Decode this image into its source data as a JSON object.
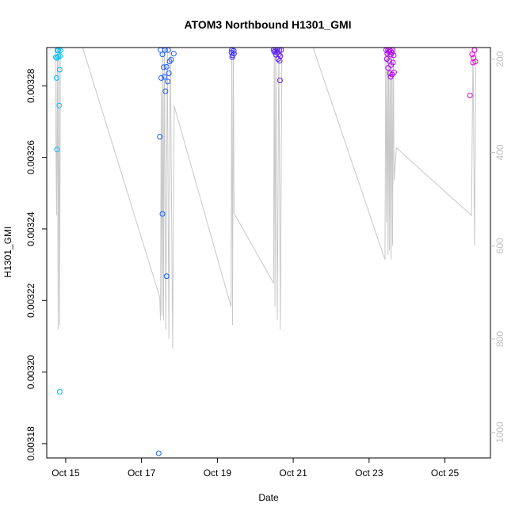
{
  "chart_data": {
    "type": "scatter",
    "title": "ATOM3 Northbound H1301_GMI",
    "xlabel": "Date",
    "ylabel": "H1301_GMI",
    "x_tick_labels": [
      "Oct 15",
      "Oct 17",
      "Oct 19",
      "Oct 21",
      "Oct 23",
      "Oct 25"
    ],
    "x_tick_days": [
      15,
      17,
      19,
      21,
      23,
      25
    ],
    "xlim": [
      14.5,
      26.2
    ],
    "y_tick_labels": [
      "0.00318",
      "0.00320",
      "0.00322",
      "0.00324",
      "0.00326",
      "0.00328"
    ],
    "y_tick_values": [
      0.00318,
      0.0032,
      0.00322,
      0.00324,
      0.00326,
      0.00328
    ],
    "ylim": [
      0.003176,
      0.0032907
    ],
    "y2_label": "",
    "y2_tick_labels": [
      "200",
      "400",
      "600",
      "800",
      "1000"
    ],
    "y2_tick_values": [
      200,
      400,
      600,
      800,
      1000
    ],
    "y2lim": [
      1055,
      175
    ],
    "colors": {
      "points_start": "#00bfff",
      "points_mid": "#1f3fff",
      "points_mid2": "#8a00ff",
      "points_end": "#e600c8",
      "altitude_line": "#c8c8c8",
      "axis": "#000000",
      "right_axis": "#c0c0c0"
    },
    "series": [
      {
        "name": "H1301_GMI",
        "points": [
          [
            14.78,
            0.0032899
          ],
          [
            14.8,
            0.0032899
          ],
          [
            14.86,
            0.0032899
          ],
          [
            14.74,
            0.003288
          ],
          [
            14.77,
            0.0032878
          ],
          [
            14.81,
            0.0032882
          ],
          [
            14.85,
            0.0032883
          ],
          [
            14.84,
            0.0032845
          ],
          [
            14.76,
            0.0032822
          ],
          [
            14.83,
            0.0032745
          ],
          [
            14.77,
            0.0032622
          ],
          [
            14.84,
            0.0031945
          ],
          [
            17.5,
            0.00329
          ],
          [
            17.62,
            0.00329
          ],
          [
            17.7,
            0.00329
          ],
          [
            17.55,
            0.0032888
          ],
          [
            17.85,
            0.003289
          ],
          [
            17.78,
            0.0032873
          ],
          [
            17.74,
            0.0032868
          ],
          [
            17.58,
            0.0032852
          ],
          [
            17.66,
            0.0032853
          ],
          [
            17.72,
            0.0032835
          ],
          [
            17.52,
            0.0032822
          ],
          [
            17.6,
            0.0032825
          ],
          [
            17.69,
            0.0032812
          ],
          [
            17.63,
            0.0032785
          ],
          [
            17.48,
            0.0032658
          ],
          [
            17.55,
            0.0032442
          ],
          [
            17.66,
            0.0032268
          ],
          [
            17.45,
            0.0031773
          ],
          [
            19.38,
            0.00329
          ],
          [
            19.43,
            0.0032898
          ],
          [
            19.37,
            0.0032893
          ],
          [
            19.44,
            0.003289
          ],
          [
            19.4,
            0.0032885
          ],
          [
            19.39,
            0.003288
          ],
          [
            20.48,
            0.00329
          ],
          [
            20.53,
            0.00329
          ],
          [
            20.58,
            0.00329
          ],
          [
            20.63,
            0.00329
          ],
          [
            20.68,
            0.00329
          ],
          [
            20.5,
            0.0032895
          ],
          [
            20.57,
            0.0032893
          ],
          [
            20.62,
            0.0032888
          ],
          [
            20.54,
            0.0032887
          ],
          [
            20.66,
            0.0032883
          ],
          [
            20.6,
            0.0032875
          ],
          [
            20.64,
            0.003287
          ],
          [
            20.65,
            0.0032815
          ],
          [
            23.45,
            0.00329
          ],
          [
            23.5,
            0.00329
          ],
          [
            23.55,
            0.00329
          ],
          [
            23.62,
            0.00329
          ],
          [
            23.52,
            0.0032895
          ],
          [
            23.6,
            0.0032893
          ],
          [
            23.48,
            0.003289
          ],
          [
            23.57,
            0.0032887
          ],
          [
            23.65,
            0.0032885
          ],
          [
            23.47,
            0.0032875
          ],
          [
            23.53,
            0.003287
          ],
          [
            23.63,
            0.0032865
          ],
          [
            23.58,
            0.0032858
          ],
          [
            23.5,
            0.003285
          ],
          [
            23.66,
            0.0032838
          ],
          [
            23.55,
            0.0032835
          ],
          [
            23.61,
            0.0032832
          ],
          [
            23.57,
            0.0032825
          ],
          [
            25.78,
            0.00329
          ],
          [
            25.72,
            0.0032888
          ],
          [
            25.75,
            0.0032878
          ],
          [
            25.8,
            0.0032868
          ],
          [
            25.74,
            0.0032865
          ],
          [
            25.66,
            0.0032773
          ]
        ]
      }
    ],
    "altitude_series": {
      "name": "altitude",
      "points": [
        [
          14.72,
          150
        ],
        [
          14.76,
          535
        ],
        [
          14.78,
          165
        ],
        [
          14.8,
          780
        ],
        [
          14.82,
          160
        ],
        [
          14.84,
          770
        ],
        [
          14.86,
          175
        ],
        [
          15.35,
          150
        ],
        [
          17.48,
          710
        ],
        [
          17.5,
          760
        ],
        [
          17.52,
          270
        ],
        [
          17.54,
          750
        ],
        [
          17.56,
          170
        ],
        [
          17.58,
          760
        ],
        [
          17.6,
          170
        ],
        [
          17.64,
          780
        ],
        [
          17.68,
          165
        ],
        [
          17.72,
          800
        ],
        [
          17.76,
          175
        ],
        [
          17.82,
          820
        ],
        [
          17.86,
          300
        ],
        [
          19.36,
          730
        ],
        [
          19.38,
          170
        ],
        [
          19.4,
          770
        ],
        [
          19.42,
          165
        ],
        [
          19.44,
          530
        ],
        [
          20.48,
          680
        ],
        [
          20.5,
          170
        ],
        [
          20.52,
          730
        ],
        [
          20.54,
          165
        ],
        [
          20.58,
          760
        ],
        [
          20.62,
          170
        ],
        [
          20.66,
          780
        ],
        [
          20.7,
          175
        ],
        [
          21.42,
          150
        ],
        [
          23.42,
          630
        ],
        [
          23.44,
          170
        ],
        [
          23.46,
          550
        ],
        [
          23.48,
          175
        ],
        [
          23.5,
          620
        ],
        [
          23.52,
          165
        ],
        [
          23.54,
          610
        ],
        [
          23.56,
          170
        ],
        [
          23.58,
          630
        ],
        [
          23.6,
          165
        ],
        [
          23.62,
          600
        ],
        [
          23.64,
          170
        ],
        [
          23.66,
          460
        ],
        [
          23.72,
          390
        ],
        [
          25.7,
          535
        ],
        [
          25.74,
          165
        ],
        [
          25.78,
          600
        ],
        [
          25.82,
          175
        ]
      ]
    }
  }
}
